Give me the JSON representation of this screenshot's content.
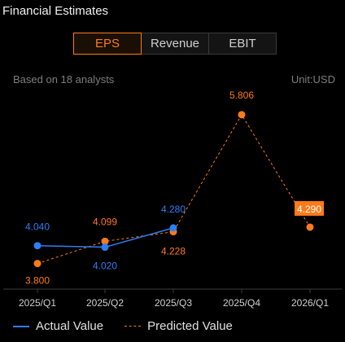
{
  "header": {
    "title": "Financial Estimates"
  },
  "tabs": [
    {
      "label": "EPS",
      "active": true
    },
    {
      "label": "Revenue",
      "active": false
    },
    {
      "label": "EBIT",
      "active": false
    }
  ],
  "info": {
    "analysts": "Based on 18 analysts",
    "unit": "Unit:USD"
  },
  "colors": {
    "actual": "#2f7ef5",
    "predicted": "#ff7a1a",
    "background": "#000000"
  },
  "chart_data": {
    "type": "line",
    "categories": [
      "2025/Q1",
      "2025/Q2",
      "2025/Q3",
      "2025/Q4",
      "2026/Q1"
    ],
    "series": [
      {
        "name": "Actual Value",
        "values": [
          4.04,
          4.02,
          4.28,
          null,
          null
        ],
        "labels": [
          "4.040",
          "4.020",
          "4.280",
          "",
          ""
        ],
        "style": "solid"
      },
      {
        "name": "Predicted Value",
        "values": [
          3.8,
          4.099,
          4.228,
          5.806,
          4.29
        ],
        "labels": [
          "3.800",
          "4.099",
          "4.228",
          "5.806",
          "4.290"
        ],
        "style": "dashed"
      }
    ],
    "ylim": [
      3.62,
      5.98
    ],
    "grid": false,
    "legend": "bottom-left"
  }
}
